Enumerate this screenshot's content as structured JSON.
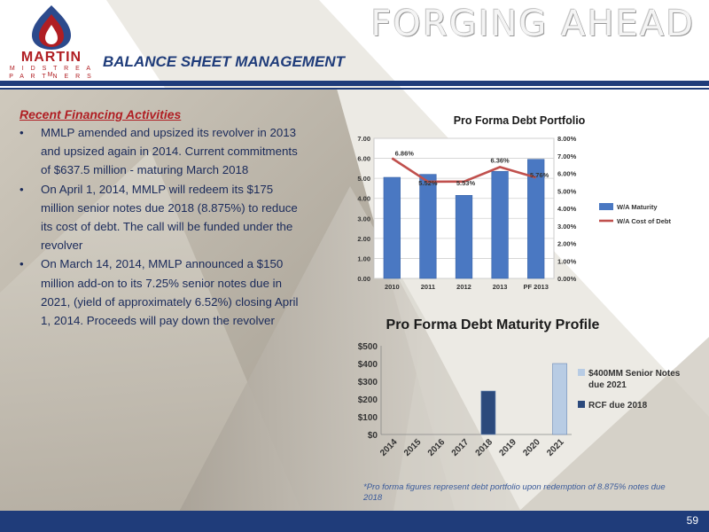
{
  "header": {
    "title": "FORGING AHEAD",
    "section": "BALANCE SHEET MANAGEMENT",
    "logo": {
      "name": "MARTIN",
      "sub1": "M I D S T R E A M",
      "sub2": "P A R T N E R S",
      "icon": "flame-logo-icon",
      "colors": {
        "red": "#b01e23",
        "blue": "#2c4a8c"
      }
    }
  },
  "financing": {
    "heading": "Recent Financing Activities",
    "bullet_char": "•",
    "bullets": [
      "MMLP amended and upsized its revolver in 2013 and upsized again in 2014. Current commitments of $637.5 million - maturing March 2018",
      "On April 1, 2014, MMLP will redeem its $175 million senior notes due 2018 (8.875%) to reduce its cost of debt.  The call will be funded under the revolver",
      "On March 14, 2014, MMLP announced a $150 million add-on to its 7.25% senior notes due in 2021, (yield of approximately 6.52%) closing April 1, 2014.  Proceeds will pay down the revolver"
    ]
  },
  "chart_data": [
    {
      "type": "bar",
      "title": "Pro Forma Debt Portfolio",
      "categories": [
        "2010",
        "2011",
        "2012",
        "2013",
        "PF 2013"
      ],
      "series": [
        {
          "name": "W/A Maturity",
          "type": "bar",
          "axis": "left",
          "values": [
            5.05,
            5.2,
            4.15,
            5.35,
            5.95
          ],
          "color": "#4a78c2"
        },
        {
          "name": "W/A Cost of Debt",
          "type": "line",
          "axis": "right",
          "values": [
            6.86,
            5.52,
            5.53,
            6.36,
            5.76
          ],
          "labels": [
            "6.86%",
            "5.52%",
            "5.53%",
            "6.36%",
            "5.76%"
          ],
          "color": "#c0504d"
        }
      ],
      "ylim": [
        0,
        7
      ],
      "yticks": [
        "0.00",
        "1.00",
        "2.00",
        "3.00",
        "4.00",
        "5.00",
        "6.00",
        "7.00"
      ],
      "y2lim": [
        0,
        8
      ],
      "y2ticks": [
        "0.00%",
        "1.00%",
        "2.00%",
        "3.00%",
        "4.00%",
        "5.00%",
        "6.00%",
        "7.00%",
        "8.00%"
      ],
      "grid": true,
      "legend": "right"
    },
    {
      "type": "bar",
      "title": "Pro Forma Debt Maturity Profile",
      "categories": [
        "2014",
        "2015",
        "2016",
        "2017",
        "2018",
        "2019",
        "2020",
        "2021"
      ],
      "series": [
        {
          "name": "$400MM Senior Notes due 2021",
          "legend_lines": [
            "$400MM Senior Notes",
            "due 2021"
          ],
          "values": [
            0,
            0,
            0,
            0,
            0,
            0,
            0,
            400
          ],
          "color": "#b8cce4"
        },
        {
          "name": "RCF due 2018",
          "legend_lines": [
            "RCF due 2018"
          ],
          "values": [
            0,
            0,
            0,
            0,
            245,
            0,
            0,
            0
          ],
          "color": "#2c4a7c"
        }
      ],
      "ylim": [
        0,
        500
      ],
      "yticks": [
        "$0",
        "$100",
        "$200",
        "$300",
        "$400",
        "$500"
      ],
      "grid": false,
      "legend": "right",
      "stacked": true
    }
  ],
  "footnote": "*Pro forma figures represent debt portfolio upon redemption of 8.875% notes due 2018",
  "page_number": "59"
}
